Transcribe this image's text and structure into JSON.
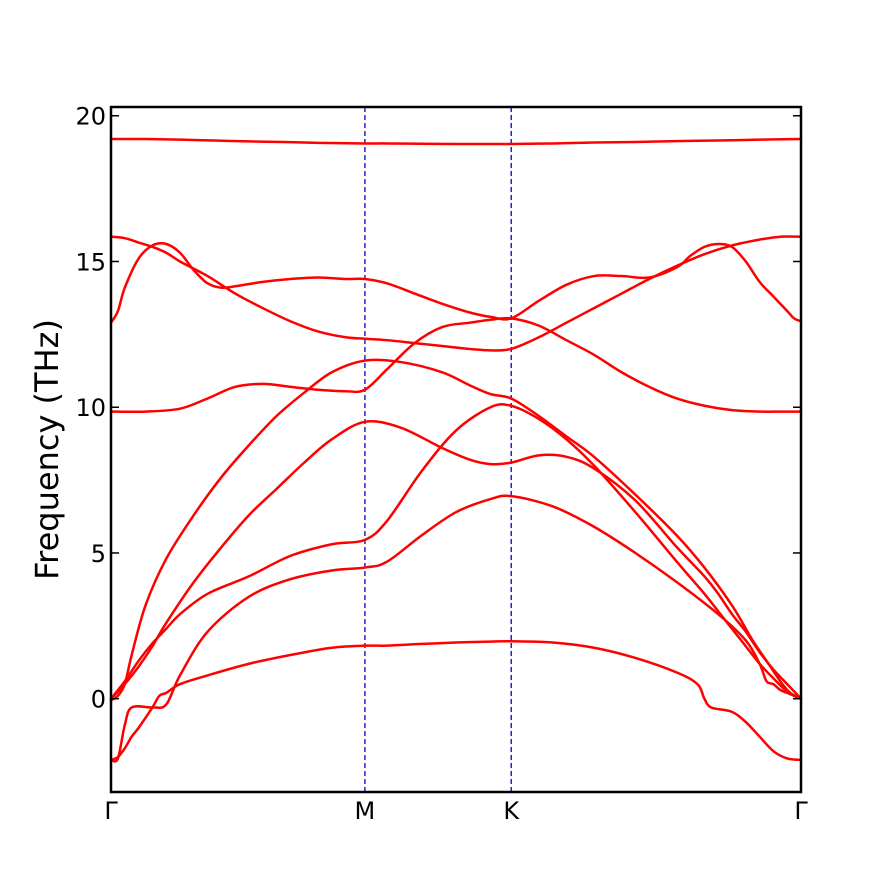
{
  "chart_data": {
    "type": "line",
    "title": "",
    "xlabel": "",
    "ylabel": "Frequency (THz)",
    "ylim": [
      -3.2,
      20.3
    ],
    "yticks": [
      0,
      5,
      10,
      15,
      20
    ],
    "ytick_labels": [
      "0",
      "5",
      "10",
      "15",
      "20"
    ],
    "xlim": [
      0,
      1
    ],
    "high_symmetry_points": [
      {
        "label": "Γ",
        "x": 0.0
      },
      {
        "label": "M",
        "x": 0.368
      },
      {
        "label": "K",
        "x": 0.58
      },
      {
        "label": "Γ",
        "x": 1.0
      }
    ],
    "vertical_lines_at": [
      0.368,
      0.58
    ],
    "line_color": "#ff0000",
    "vline_color": "#0000cc",
    "grid": false,
    "series": [
      {
        "x": [
          0,
          0.01,
          0.02,
          0.03,
          0.04,
          0.06,
          0.07,
          0.08,
          0.1,
          0.14,
          0.2,
          0.26,
          0.32,
          0.368,
          0.4,
          0.45,
          0.5,
          0.55,
          0.58,
          0.64,
          0.7,
          0.76,
          0.82,
          0.85,
          0.86,
          0.87,
          0.9,
          0.92,
          0.94,
          0.96,
          0.98,
          1.0
        ],
        "y": [
          -2.1,
          -2.0,
          -1.7,
          -1.3,
          -1.0,
          -0.3,
          0.1,
          0.2,
          0.5,
          0.8,
          1.2,
          1.5,
          1.75,
          1.82,
          1.82,
          1.88,
          1.93,
          1.96,
          1.97,
          1.93,
          1.75,
          1.4,
          0.9,
          0.5,
          0.0,
          -0.3,
          -0.45,
          -0.8,
          -1.3,
          -1.8,
          -2.05,
          -2.1
        ]
      },
      {
        "x": [
          0,
          0.01,
          0.02,
          0.03,
          0.06,
          0.08,
          0.1,
          0.14,
          0.2,
          0.26,
          0.32,
          0.368,
          0.4,
          0.45,
          0.5,
          0.55,
          0.58,
          0.64,
          0.7,
          0.76,
          0.82,
          0.88,
          0.92,
          0.94,
          0.95,
          0.96,
          0.97,
          0.98,
          0.99,
          1.0
        ],
        "y": [
          -2.1,
          -2.05,
          -0.9,
          -0.3,
          -0.3,
          -0.2,
          0.8,
          2.3,
          3.5,
          4.1,
          4.4,
          4.5,
          4.7,
          5.6,
          6.4,
          6.85,
          6.95,
          6.6,
          5.9,
          5.0,
          4.0,
          2.9,
          2.0,
          1.2,
          0.6,
          0.5,
          0.3,
          0.2,
          0.1,
          0.0
        ]
      },
      {
        "x": [
          0,
          0.02,
          0.04,
          0.06,
          0.08,
          0.1,
          0.14,
          0.2,
          0.26,
          0.32,
          0.368,
          0.4,
          0.45,
          0.5,
          0.55,
          0.58,
          0.62,
          0.66,
          0.7,
          0.76,
          0.82,
          0.86,
          0.88,
          0.9,
          0.92,
          0.94,
          0.96,
          0.98,
          1.0
        ],
        "y": [
          0.0,
          0.6,
          1.3,
          1.9,
          2.4,
          2.9,
          3.6,
          4.2,
          4.9,
          5.3,
          5.45,
          6.1,
          7.8,
          9.2,
          10.0,
          10.05,
          9.6,
          8.9,
          8.0,
          6.4,
          4.7,
          3.6,
          3.0,
          2.4,
          1.8,
          1.2,
          0.7,
          0.25,
          0.0
        ]
      },
      {
        "x": [
          0,
          0.02,
          0.04,
          0.06,
          0.08,
          0.12,
          0.16,
          0.2,
          0.24,
          0.28,
          0.32,
          0.368,
          0.42,
          0.48,
          0.52,
          0.55,
          0.58,
          0.62,
          0.66,
          0.7,
          0.76,
          0.82,
          0.86,
          0.88,
          0.9,
          0.92,
          0.94,
          0.96,
          0.98,
          1.0
        ],
        "y": [
          0.0,
          0.5,
          1.1,
          1.8,
          2.6,
          4.0,
          5.2,
          6.3,
          7.2,
          8.1,
          8.9,
          9.5,
          9.3,
          8.6,
          8.2,
          8.05,
          8.1,
          8.35,
          8.3,
          7.9,
          6.8,
          5.2,
          4.2,
          3.6,
          2.9,
          2.3,
          1.6,
          1.0,
          0.5,
          0.0
        ]
      },
      {
        "x": [
          0,
          0.01,
          0.02,
          0.03,
          0.05,
          0.08,
          0.12,
          0.16,
          0.2,
          0.24,
          0.28,
          0.32,
          0.368,
          0.42,
          0.48,
          0.52,
          0.55,
          0.58,
          0.62,
          0.66,
          0.7,
          0.76,
          0.82,
          0.86,
          0.9,
          0.93,
          0.95,
          0.97,
          0.98,
          0.99,
          1.0
        ],
        "y": [
          -0.05,
          0.1,
          0.5,
          1.5,
          3.2,
          4.8,
          6.3,
          7.6,
          8.7,
          9.7,
          10.5,
          11.2,
          11.6,
          11.55,
          11.2,
          10.75,
          10.45,
          10.3,
          9.7,
          9.0,
          8.3,
          7.0,
          5.6,
          4.5,
          3.2,
          2.0,
          1.3,
          0.6,
          0.3,
          0.1,
          0.0
        ]
      },
      {
        "x": [
          0,
          0.05,
          0.1,
          0.14,
          0.18,
          0.22,
          0.26,
          0.3,
          0.34,
          0.368,
          0.4,
          0.44,
          0.48,
          0.52,
          0.55,
          0.58,
          0.62,
          0.66,
          0.7,
          0.74,
          0.78,
          0.82,
          0.86,
          0.9,
          0.94,
          0.97,
          1.0
        ],
        "y": [
          9.85,
          9.85,
          9.95,
          10.3,
          10.7,
          10.8,
          10.7,
          10.6,
          10.55,
          10.6,
          11.3,
          12.2,
          12.75,
          12.9,
          13.0,
          13.05,
          12.8,
          12.3,
          11.8,
          11.2,
          10.7,
          10.3,
          10.05,
          9.9,
          9.85,
          9.85,
          9.85
        ]
      },
      {
        "x": [
          0,
          0.02,
          0.04,
          0.06,
          0.08,
          0.1,
          0.14,
          0.18,
          0.22,
          0.26,
          0.3,
          0.34,
          0.368,
          0.4,
          0.44,
          0.48,
          0.52,
          0.55,
          0.58,
          0.62,
          0.66,
          0.7,
          0.74,
          0.78,
          0.82,
          0.86,
          0.9,
          0.94,
          0.97,
          1.0
        ],
        "y": [
          15.85,
          15.8,
          15.65,
          15.5,
          15.3,
          15.0,
          14.5,
          13.9,
          13.4,
          12.95,
          12.6,
          12.4,
          12.35,
          12.3,
          12.2,
          12.1,
          12.0,
          11.95,
          12.0,
          12.4,
          12.9,
          13.4,
          13.9,
          14.4,
          14.85,
          15.25,
          15.55,
          15.75,
          15.85,
          15.85
        ]
      },
      {
        "x": [
          0,
          0.01,
          0.02,
          0.04,
          0.06,
          0.08,
          0.1,
          0.12,
          0.14,
          0.16,
          0.18,
          0.22,
          0.26,
          0.3,
          0.34,
          0.368,
          0.4,
          0.44,
          0.48,
          0.52,
          0.55,
          0.58,
          0.62,
          0.66,
          0.7,
          0.74,
          0.78,
          0.82,
          0.84,
          0.86,
          0.88,
          0.9,
          0.92,
          0.94,
          0.96,
          0.98,
          0.99,
          1.0
        ],
        "y": [
          12.9,
          13.3,
          14.1,
          15.1,
          15.55,
          15.6,
          15.3,
          14.7,
          14.25,
          14.1,
          14.15,
          14.3,
          14.4,
          14.45,
          14.4,
          14.4,
          14.25,
          13.9,
          13.55,
          13.25,
          13.1,
          13.05,
          13.65,
          14.2,
          14.5,
          14.5,
          14.45,
          14.8,
          15.2,
          15.5,
          15.6,
          15.5,
          15.0,
          14.3,
          13.8,
          13.3,
          13.05,
          12.95
        ]
      },
      {
        "x": [
          0,
          0.05,
          0.1,
          0.15,
          0.2,
          0.25,
          0.3,
          0.368,
          0.4,
          0.45,
          0.5,
          0.55,
          0.58,
          0.64,
          0.7,
          0.76,
          0.82,
          0.88,
          0.94,
          1.0
        ],
        "y": [
          19.2,
          19.2,
          19.18,
          19.15,
          19.12,
          19.1,
          19.07,
          19.05,
          19.05,
          19.04,
          19.03,
          19.03,
          19.03,
          19.05,
          19.08,
          19.1,
          19.13,
          19.15,
          19.18,
          19.2
        ]
      }
    ]
  }
}
